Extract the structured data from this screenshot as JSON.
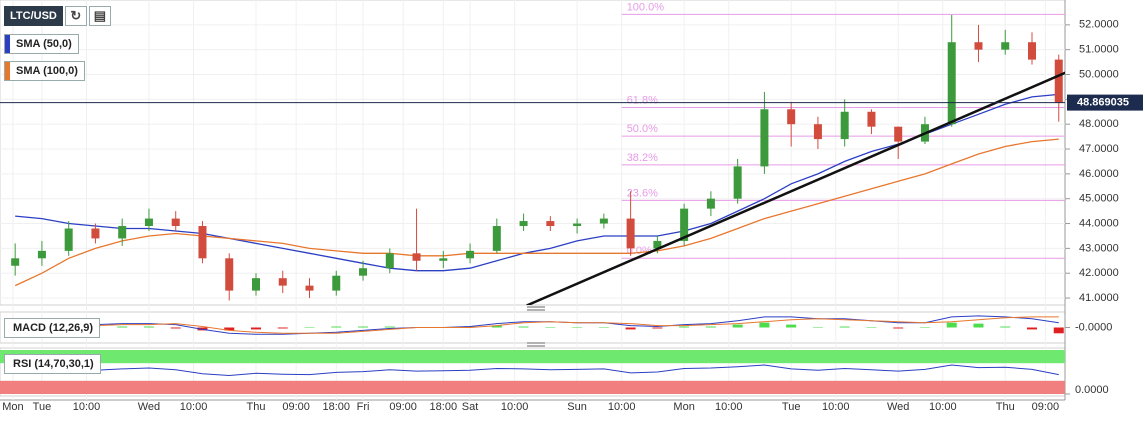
{
  "chart_data": [
    {
      "type": "candlestick",
      "title": "LTC/USD",
      "x": [
        -6,
        0,
        6,
        12,
        18,
        24,
        30,
        36,
        42,
        48,
        54,
        60,
        66,
        72,
        78,
        84,
        90,
        96,
        102,
        108,
        114,
        120,
        126,
        132,
        138,
        144,
        150,
        156,
        162,
        168,
        174,
        180,
        186,
        192,
        198,
        204,
        210,
        216,
        222,
        228
      ],
      "open": [
        42.3,
        42.6,
        42.9,
        43.8,
        43.4,
        43.9,
        44.2,
        43.9,
        42.6,
        41.3,
        41.8,
        41.5,
        41.3,
        41.9,
        42.2,
        42.8,
        42.5,
        42.6,
        42.9,
        43.9,
        44.1,
        43.9,
        44.0,
        44.2,
        43.0,
        43.3,
        44.6,
        45.0,
        46.3,
        48.6,
        48.0,
        47.4,
        48.5,
        47.9,
        47.3,
        48.0,
        51.3,
        51.0,
        51.3,
        50.6
      ],
      "high": [
        43.2,
        43.3,
        44.1,
        44.0,
        44.2,
        44.6,
        44.5,
        44.1,
        42.8,
        42.0,
        42.1,
        41.8,
        42.1,
        42.5,
        43.0,
        44.6,
        42.9,
        43.2,
        44.2,
        44.4,
        44.3,
        44.2,
        44.4,
        45.3,
        43.5,
        44.8,
        45.3,
        46.6,
        49.3,
        48.9,
        48.3,
        49.0,
        48.6,
        47.9,
        48.3,
        52.4,
        52.0,
        51.8,
        51.7,
        50.8
      ],
      "low": [
        41.9,
        42.3,
        42.7,
        43.2,
        43.1,
        43.7,
        43.7,
        42.4,
        40.9,
        41.1,
        41.2,
        41.0,
        41.1,
        41.7,
        42.0,
        42.1,
        42.2,
        42.4,
        42.8,
        43.7,
        43.7,
        43.6,
        43.8,
        42.7,
        42.8,
        43.1,
        44.3,
        44.8,
        46.0,
        47.1,
        47.0,
        47.1,
        47.6,
        46.6,
        47.2,
        47.9,
        50.5,
        50.8,
        50.4,
        48.1
      ],
      "close": [
        42.6,
        42.9,
        43.8,
        43.4,
        43.9,
        44.2,
        43.9,
        42.6,
        41.3,
        41.8,
        41.5,
        41.3,
        41.9,
        42.2,
        42.8,
        42.5,
        42.6,
        42.9,
        43.9,
        44.1,
        43.9,
        44.0,
        44.2,
        43.0,
        43.3,
        44.6,
        45.0,
        46.3,
        48.6,
        48.0,
        47.4,
        48.5,
        47.9,
        47.3,
        48.0,
        51.3,
        51.0,
        51.3,
        50.6,
        48.87
      ],
      "up_color": "#3c9a3c",
      "down_color": "#d24c3e",
      "series": [
        {
          "name": "SMA (50,0)",
          "color": "#2b3fc4",
          "values": [
            44.3,
            44.2,
            44.0,
            43.9,
            43.8,
            43.8,
            43.7,
            43.6,
            43.4,
            43.2,
            43.0,
            42.8,
            42.6,
            42.4,
            42.2,
            42.1,
            42.1,
            42.2,
            42.5,
            42.8,
            43.0,
            43.3,
            43.5,
            43.5,
            43.5,
            43.7,
            44.0,
            44.5,
            45.0,
            45.6,
            46.0,
            46.5,
            46.9,
            47.2,
            47.6,
            48.0,
            48.4,
            48.8,
            49.1,
            49.2
          ]
        },
        {
          "name": "SMA (100,0)",
          "color": "#e8772e",
          "values": [
            41.5,
            42.0,
            42.6,
            43.0,
            43.3,
            43.5,
            43.6,
            43.5,
            43.4,
            43.3,
            43.2,
            43.0,
            42.9,
            42.8,
            42.8,
            42.7,
            42.7,
            42.8,
            42.8,
            42.8,
            42.8,
            42.8,
            42.8,
            42.8,
            42.9,
            43.1,
            43.4,
            43.8,
            44.2,
            44.5,
            44.8,
            45.1,
            45.4,
            45.7,
            46.0,
            46.4,
            46.8,
            47.1,
            47.3,
            47.4
          ]
        }
      ],
      "trendline": {
        "x": [
          108.7,
          230.5
        ],
        "y": [
          40.7,
          50.15
        ],
        "color": "#111111"
      },
      "fibonacci": {
        "start": 130,
        "color": "#e79be7",
        "levels": [
          {
            "label": "100.0%",
            "price": 52.42
          },
          {
            "label": "61.8%",
            "price": 48.67
          },
          {
            "label": "50.0%",
            "price": 47.52
          },
          {
            "label": "38.2%",
            "price": 46.36
          },
          {
            "label": "23.6%",
            "price": 44.93
          },
          {
            "label": "0.0%",
            "price": 42.6
          }
        ]
      },
      "current_price": 48.869035,
      "current_color": "#1c2b4e",
      "xlim": [
        -9.4,
        229.4
      ],
      "ylim": [
        40.72,
        53.0
      ],
      "yticks": [
        {
          "value": 41,
          "label": "41.0000"
        },
        {
          "value": 42,
          "label": "42.0000"
        },
        {
          "value": 43,
          "label": "43.0000"
        },
        {
          "value": 44,
          "label": "44.0000"
        },
        {
          "value": 45,
          "label": "45.0000"
        },
        {
          "value": 46,
          "label": "46.0000"
        },
        {
          "value": 47,
          "label": "47.0000"
        },
        {
          "value": 48,
          "label": "48.0000"
        },
        {
          "value": 49,
          "label": "49.0000"
        },
        {
          "value": 50,
          "label": "50.0000"
        },
        {
          "value": 51,
          "label": "51.0000"
        },
        {
          "value": 52,
          "label": "52.0000"
        }
      ],
      "xticks": [
        {
          "value": -6.5,
          "label": "Mon"
        },
        {
          "value": 0,
          "label": "Tue"
        },
        {
          "value": 10,
          "label": "10:00"
        },
        {
          "value": 24,
          "label": "Wed"
        },
        {
          "value": 34,
          "label": "10:00"
        },
        {
          "value": 48,
          "label": "Thu"
        },
        {
          "value": 57,
          "label": "09:00"
        },
        {
          "value": 66,
          "label": "18:00"
        },
        {
          "value": 72,
          "label": "Fri"
        },
        {
          "value": 81,
          "label": "09:00"
        },
        {
          "value": 90,
          "label": "18:00"
        },
        {
          "value": 96,
          "label": "Sat"
        },
        {
          "value": 106,
          "label": "10:00"
        },
        {
          "value": 120,
          "label": "Sun"
        },
        {
          "value": 130,
          "label": "10:00"
        },
        {
          "value": 144,
          "label": "Mon"
        },
        {
          "value": 154,
          "label": "10:00"
        },
        {
          "value": 168,
          "label": "Tue"
        },
        {
          "value": 178,
          "label": "10:00"
        },
        {
          "value": 192,
          "label": "Wed"
        },
        {
          "value": 202,
          "label": "10:00"
        },
        {
          "value": 216,
          "label": "Thu"
        },
        {
          "value": 225,
          "label": "09:00"
        }
      ]
    },
    {
      "type": "macd",
      "title": "MACD (12,26,9)",
      "hist": [
        0.1,
        0.1,
        0.2,
        0.1,
        0.1,
        0.1,
        -0.1,
        -0.3,
        -0.3,
        -0.2,
        -0.1,
        0,
        0.1,
        0.1,
        0.1,
        0,
        0,
        0.1,
        0.2,
        0.1,
        0,
        0,
        0,
        -0.2,
        -0.1,
        0.1,
        0.1,
        0.3,
        0.5,
        0.3,
        0,
        0.1,
        0,
        -0.1,
        0,
        0.5,
        0.4,
        0.1,
        -0.2,
        -0.6
      ],
      "macd": [
        -0.2,
        0,
        0.2,
        0.3,
        0.4,
        0.4,
        0.3,
        -0.2,
        -0.6,
        -0.7,
        -0.7,
        -0.6,
        -0.5,
        -0.3,
        -0.1,
        0,
        0,
        0.1,
        0.4,
        0.6,
        0.6,
        0.5,
        0.5,
        0.2,
        0.1,
        0.3,
        0.4,
        0.7,
        1.1,
        1.1,
        0.9,
        0.9,
        0.7,
        0.5,
        0.5,
        1.1,
        1.2,
        1.1,
        0.9,
        0.5
      ],
      "signal": [
        -0.3,
        -0.1,
        0,
        0.2,
        0.3,
        0.3,
        0.4,
        0.1,
        -0.3,
        -0.5,
        -0.6,
        -0.6,
        -0.6,
        -0.4,
        -0.2,
        0,
        0,
        0,
        0.2,
        0.5,
        0.6,
        0.5,
        0.5,
        0.4,
        0.2,
        0.2,
        0.3,
        0.4,
        0.6,
        0.8,
        0.9,
        0.8,
        0.7,
        0.6,
        0.5,
        0.6,
        0.8,
        1.0,
        1.1,
        1.1
      ],
      "macd_color": "#2b3fc4",
      "signal_color": "#e8772e",
      "up_color": "#4cdc4c",
      "down_color": "#e02020",
      "ylim": [
        -1.5,
        1.5
      ],
      "yticks": [
        {
          "value": 0,
          "label": "-0.0000"
        }
      ]
    },
    {
      "type": "rsi",
      "title": "RSI (14,70,30,1)",
      "values": [
        52,
        55,
        58,
        54,
        57,
        59,
        55,
        46,
        42,
        47,
        45,
        44,
        49,
        51,
        55,
        52,
        53,
        54,
        58,
        57,
        55,
        56,
        57,
        48,
        50,
        58,
        59,
        62,
        66,
        57,
        54,
        58,
        55,
        52,
        56,
        66,
        60,
        61,
        56,
        44
      ],
      "color": "#2b3fc4",
      "bands": [
        30,
        70
      ],
      "band_colors": [
        "#f27f7f",
        "#6ee86e"
      ],
      "ylim": [
        0,
        100
      ],
      "yticks": [
        {
          "value": 0,
          "label": "0.0000"
        }
      ]
    }
  ]
}
